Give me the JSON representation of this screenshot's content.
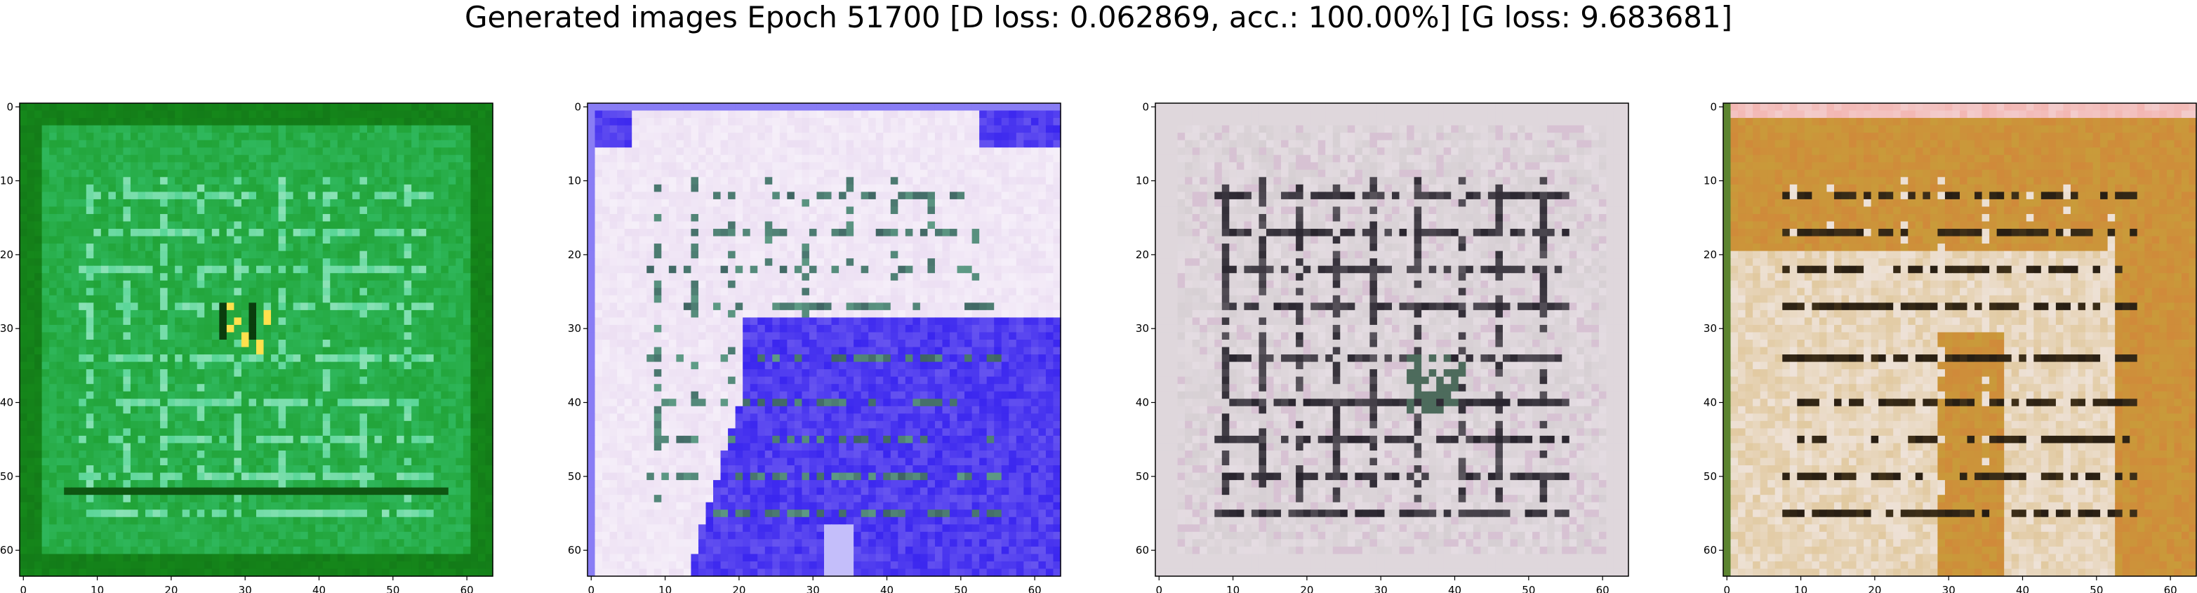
{
  "figure": {
    "title": "Generated images Epoch 51700 [D loss: 0.062869, acc.: 100.00%] [G loss: 9.683681]"
  },
  "panels": [
    {
      "name": "generated-image-1",
      "palette": {
        "base": "#17951d",
        "light": "#3fcf87",
        "dark": "#0a3d0d",
        "accent": "#ffe14d",
        "accent2": "#ffffff"
      },
      "style": "green"
    },
    {
      "name": "generated-image-2",
      "palette": {
        "base": "#ecdff3",
        "light": "#ffffff",
        "dark": "#1f2b3f",
        "blue": "#3a26ef",
        "accent": "#5f9c86"
      },
      "style": "blue"
    },
    {
      "name": "generated-image-3",
      "palette": {
        "base": "#d6cfd3",
        "light": "#f4eaf2",
        "dark": "#1a1620",
        "accent": "#4d6b5c",
        "tint": "#d7b9d3"
      },
      "style": "grey"
    },
    {
      "name": "generated-image-4",
      "palette": {
        "base": "#c99b3a",
        "light": "#f4eef3",
        "dark": "#1c1510",
        "accent": "#d7783a",
        "pink": "#f3b6b2"
      },
      "style": "orange"
    }
  ],
  "axes": {
    "x_ticks": [
      "0",
      "10",
      "20",
      "30",
      "40",
      "50",
      "60"
    ],
    "y_ticks": [
      "0",
      "10",
      "20",
      "30",
      "40",
      "50",
      "60"
    ],
    "pixels": 64
  }
}
